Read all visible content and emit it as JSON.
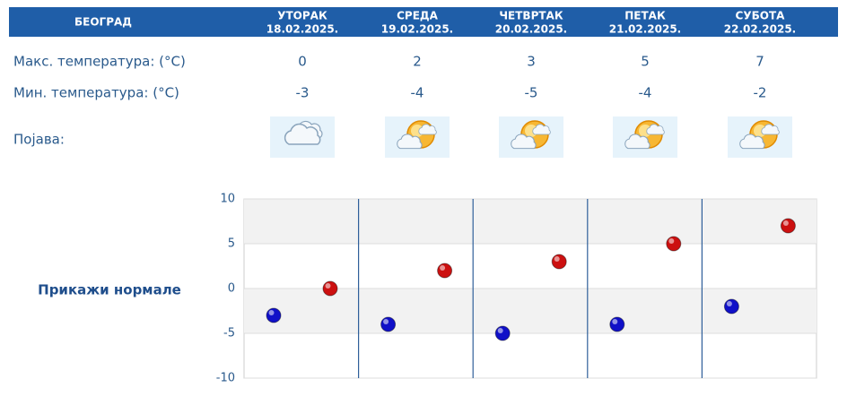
{
  "header": {
    "city": "БЕОГРАД",
    "days": [
      {
        "name": "УТОРАК",
        "date": "18.02.2025."
      },
      {
        "name": "СРЕДА",
        "date": "19.02.2025."
      },
      {
        "name": "ЧЕТВРТАК",
        "date": "20.02.2025."
      },
      {
        "name": "ПЕТАК",
        "date": "21.02.2025."
      },
      {
        "name": "СУБОТА",
        "date": "22.02.2025."
      }
    ]
  },
  "rows": {
    "max_label": "Макс. температура: (°C)",
    "max": [
      0,
      2,
      3,
      5,
      7
    ],
    "min_label": "Мин. температура: (°C)",
    "min": [
      -3,
      -4,
      -5,
      -4,
      -2
    ],
    "weather_label": "Појава:"
  },
  "chart": {
    "ylim": [
      -10,
      10
    ],
    "yticks": [
      -10,
      -5,
      0,
      5,
      10
    ],
    "min_color": "#1010c8",
    "max_color": "#cc1010",
    "link": "Прикажи нормале"
  }
}
